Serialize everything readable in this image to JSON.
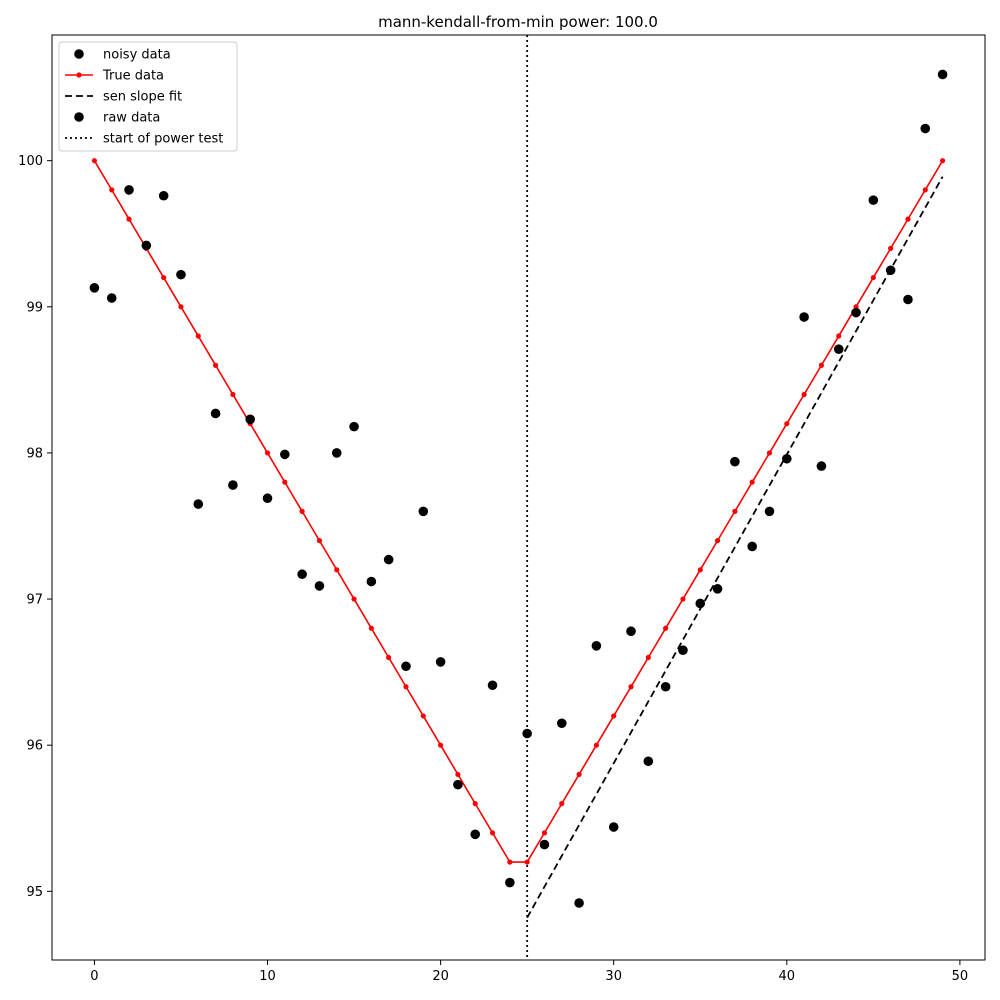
{
  "chart_data": {
    "type": "scatter",
    "title": "mann-kendall-from-min power: 100.0",
    "xlabel": "",
    "ylabel": "",
    "xlim": [
      -2.45,
      51.45
    ],
    "ylim": [
      94.53,
      100.86
    ],
    "x_ticks": [
      0,
      10,
      20,
      30,
      40,
      50
    ],
    "y_ticks": [
      95,
      96,
      97,
      98,
      99,
      100
    ],
    "grid": false,
    "legend_position": "top-left",
    "colors": {
      "noisy": "#000000",
      "true": "#ff0000",
      "sen": "#000000",
      "raw": "#000000",
      "power": "#000000"
    },
    "legend": [
      {
        "key": "noisy",
        "label": "noisy data",
        "marker": "circle",
        "color": "#000000"
      },
      {
        "key": "true",
        "label": "True data",
        "marker": "line-dot",
        "color": "#ff0000"
      },
      {
        "key": "sen",
        "label": "sen slope fit",
        "marker": "dashed",
        "color": "#000000"
      },
      {
        "key": "raw",
        "label": "raw data",
        "marker": "circle",
        "color": "#000000"
      },
      {
        "key": "power",
        "label": "start of power test",
        "marker": "dotted",
        "color": "#000000"
      }
    ],
    "series": [
      {
        "name": "noisy data",
        "kind": "scatter",
        "x": [
          0,
          1,
          2,
          3,
          4,
          5,
          6,
          7,
          8,
          9,
          10,
          11,
          12,
          13,
          14,
          15,
          16,
          17,
          18,
          19,
          20,
          21,
          22,
          23,
          24,
          25,
          26,
          27,
          28,
          29,
          30,
          31,
          32,
          33,
          34,
          35,
          36,
          37,
          38,
          39,
          40,
          41,
          42,
          43,
          44,
          45,
          46,
          47,
          48,
          49
        ],
        "y": [
          99.13,
          99.06,
          99.8,
          99.42,
          99.76,
          99.22,
          97.65,
          98.27,
          97.78,
          98.23,
          97.69,
          97.99,
          97.17,
          97.09,
          98.0,
          98.18,
          97.12,
          97.27,
          96.54,
          97.6,
          96.57,
          95.73,
          95.39,
          96.41,
          95.06,
          96.08,
          95.32,
          96.15,
          94.92,
          96.68,
          95.44,
          96.78,
          95.89,
          96.4,
          96.65,
          96.97,
          97.07,
          97.94,
          97.36,
          97.6,
          97.96,
          98.93,
          97.91,
          98.71,
          98.96,
          99.73,
          99.25,
          99.05,
          100.22,
          100.59
        ]
      },
      {
        "name": "True data",
        "kind": "line",
        "x": [
          0,
          1,
          2,
          3,
          4,
          5,
          6,
          7,
          8,
          9,
          10,
          11,
          12,
          13,
          14,
          15,
          16,
          17,
          18,
          19,
          20,
          21,
          22,
          23,
          24,
          25,
          26,
          27,
          28,
          29,
          30,
          31,
          32,
          33,
          34,
          35,
          36,
          37,
          38,
          39,
          40,
          41,
          42,
          43,
          44,
          45,
          46,
          47,
          48,
          49
        ],
        "y": [
          100.0,
          99.8,
          99.6,
          99.4,
          99.2,
          99.0,
          98.8,
          98.6,
          98.4,
          98.2,
          98.0,
          97.8,
          97.6,
          97.4,
          97.2,
          97.0,
          96.8,
          96.6,
          96.4,
          96.2,
          96.0,
          95.8,
          95.6,
          95.4,
          95.2,
          95.2,
          95.4,
          95.6,
          95.8,
          96.0,
          96.2,
          96.4,
          96.6,
          96.8,
          97.0,
          97.2,
          97.4,
          97.6,
          97.8,
          98.0,
          98.2,
          98.4,
          98.6,
          98.8,
          99.0,
          99.2,
          99.4,
          99.6,
          99.8,
          100.0
        ]
      },
      {
        "name": "sen slope fit",
        "kind": "dashed-line",
        "x": [
          25,
          49
        ],
        "y": [
          94.82,
          99.89
        ]
      },
      {
        "name": "start of power test",
        "kind": "vline",
        "x": 25
      }
    ]
  }
}
